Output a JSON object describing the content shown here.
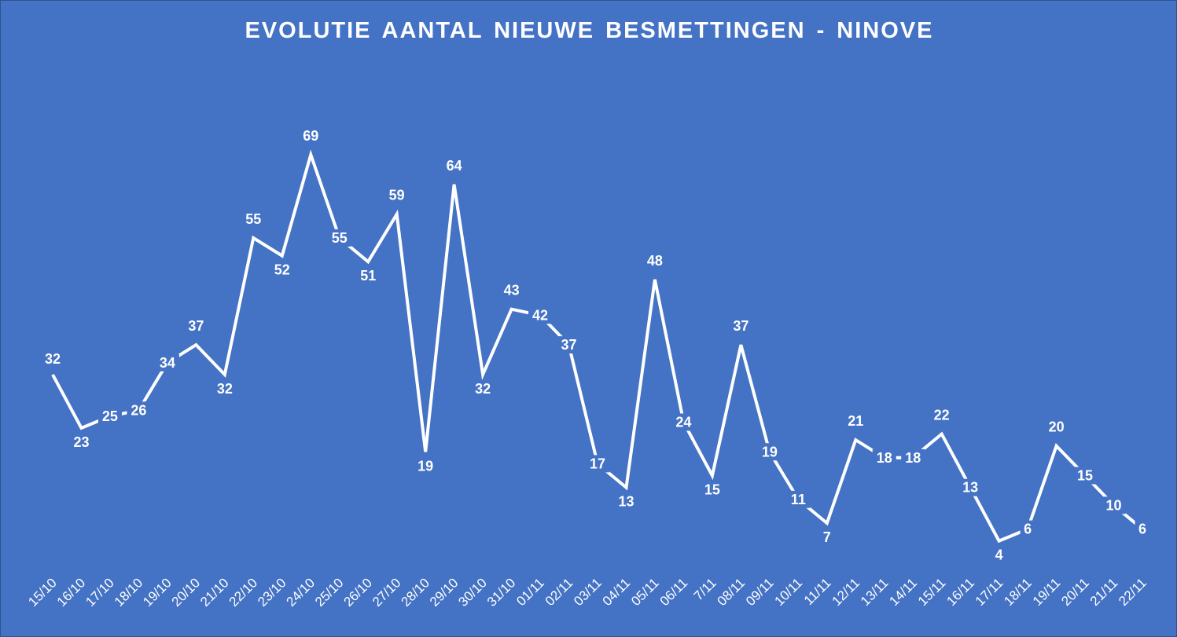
{
  "chart_data": {
    "type": "line",
    "title": "EVOLUTIE AANTAL NIEUWE BESMETTINGEN - NINOVE",
    "categories": [
      "15/10",
      "16/10",
      "17/10",
      "18/10",
      "19/10",
      "20/10",
      "21/10",
      "22/10",
      "23/10",
      "24/10",
      "25/10",
      "26/10",
      "27/10",
      "28/10",
      "29/10",
      "30/10",
      "31/10",
      "01/11",
      "02/11",
      "03/11",
      "04/11",
      "05/11",
      "06/11",
      "7/11",
      "08/11",
      "09/11",
      "10/11",
      "11/11",
      "12/11",
      "13/11",
      "14/11",
      "15/11",
      "16/11",
      "17/11",
      "18/11",
      "19/11",
      "20/11",
      "21/11",
      "22/11"
    ],
    "values": [
      32,
      23,
      25,
      26,
      34,
      37,
      32,
      55,
      52,
      69,
      55,
      51,
      59,
      19,
      64,
      32,
      43,
      42,
      37,
      17,
      13,
      48,
      24,
      15,
      37,
      19,
      11,
      7,
      21,
      18,
      18,
      22,
      13,
      4,
      6,
      20,
      15,
      10,
      6
    ],
    "ylim": [
      0,
      75
    ],
    "grid": false,
    "legend": "none",
    "data_labels": true,
    "drop_lines": true,
    "colors": {
      "background": "#4472C4",
      "line": "#FFFFFF",
      "text": "#FFFFFF"
    }
  }
}
